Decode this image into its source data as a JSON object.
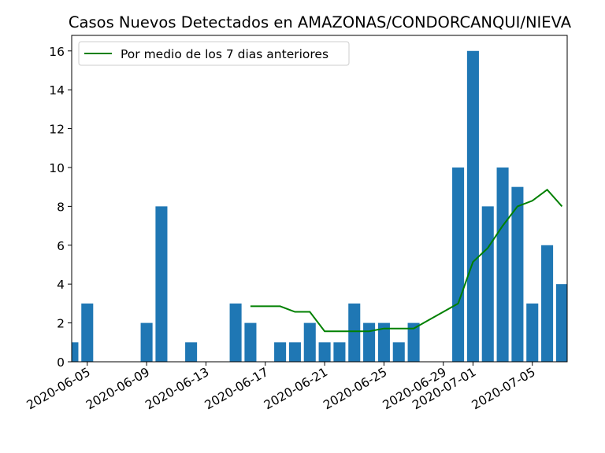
{
  "chart_data": {
    "type": "bar",
    "title": "Casos Nuevos Detectados en AMAZONAS/CONDORCANQUI/NIEVA",
    "xlabel": "",
    "ylabel": "",
    "ylim": [
      0,
      16.8
    ],
    "yticks": [
      0,
      2,
      4,
      6,
      8,
      10,
      12,
      14,
      16
    ],
    "xticks": [
      "2020-06-05",
      "2020-06-09",
      "2020-06-13",
      "2020-06-17",
      "2020-06-21",
      "2020-06-25",
      "2020-06-29",
      "2020-07-01",
      "2020-07-05"
    ],
    "bars": [
      {
        "date": "2020-06-04",
        "value": 1
      },
      {
        "date": "2020-06-05",
        "value": 3
      },
      {
        "date": "2020-06-09",
        "value": 2
      },
      {
        "date": "2020-06-10",
        "value": 8
      },
      {
        "date": "2020-06-12",
        "value": 1
      },
      {
        "date": "2020-06-15",
        "value": 3
      },
      {
        "date": "2020-06-16",
        "value": 2
      },
      {
        "date": "2020-06-18",
        "value": 1
      },
      {
        "date": "2020-06-19",
        "value": 1
      },
      {
        "date": "2020-06-20",
        "value": 2
      },
      {
        "date": "2020-06-21",
        "value": 1
      },
      {
        "date": "2020-06-22",
        "value": 1
      },
      {
        "date": "2020-06-23",
        "value": 3
      },
      {
        "date": "2020-06-24",
        "value": 2
      },
      {
        "date": "2020-06-25",
        "value": 2
      },
      {
        "date": "2020-06-26",
        "value": 1
      },
      {
        "date": "2020-06-27",
        "value": 2
      },
      {
        "date": "2020-06-30",
        "value": 10
      },
      {
        "date": "2020-07-01",
        "value": 16
      },
      {
        "date": "2020-07-02",
        "value": 8
      },
      {
        "date": "2020-07-03",
        "value": 10
      },
      {
        "date": "2020-07-04",
        "value": 9
      },
      {
        "date": "2020-07-05",
        "value": 3
      },
      {
        "date": "2020-07-06",
        "value": 6
      },
      {
        "date": "2020-07-07",
        "value": 4
      }
    ],
    "series": [
      {
        "name": "Por medio de los 7 dias anteriores",
        "color": "#008000",
        "points": [
          {
            "date": "2020-06-16",
            "value": 2.857
          },
          {
            "date": "2020-06-17",
            "value": 2.857
          },
          {
            "date": "2020-06-18",
            "value": 2.857
          },
          {
            "date": "2020-06-19",
            "value": 2.571
          },
          {
            "date": "2020-06-20",
            "value": 2.571
          },
          {
            "date": "2020-06-21",
            "value": 1.571
          },
          {
            "date": "2020-06-22",
            "value": 1.571
          },
          {
            "date": "2020-06-23",
            "value": 1.571
          },
          {
            "date": "2020-06-24",
            "value": 1.571
          },
          {
            "date": "2020-06-25",
            "value": 1.714
          },
          {
            "date": "2020-06-26",
            "value": 1.714
          },
          {
            "date": "2020-06-27",
            "value": 1.714
          },
          {
            "date": "2020-06-28",
            "value": 2.143
          },
          {
            "date": "2020-06-29",
            "value": 2.571
          },
          {
            "date": "2020-06-30",
            "value": 3.0
          },
          {
            "date": "2020-07-01",
            "value": 5.143
          },
          {
            "date": "2020-07-02",
            "value": 5.857
          },
          {
            "date": "2020-07-03",
            "value": 7.0
          },
          {
            "date": "2020-07-04",
            "value": 8.0
          },
          {
            "date": "2020-07-05",
            "value": 8.286
          },
          {
            "date": "2020-07-06",
            "value": 8.857
          },
          {
            "date": "2020-07-07",
            "value": 8.0
          }
        ]
      }
    ],
    "bar_color": "#1f77b4",
    "legend_position": "top-left",
    "grid": false
  }
}
